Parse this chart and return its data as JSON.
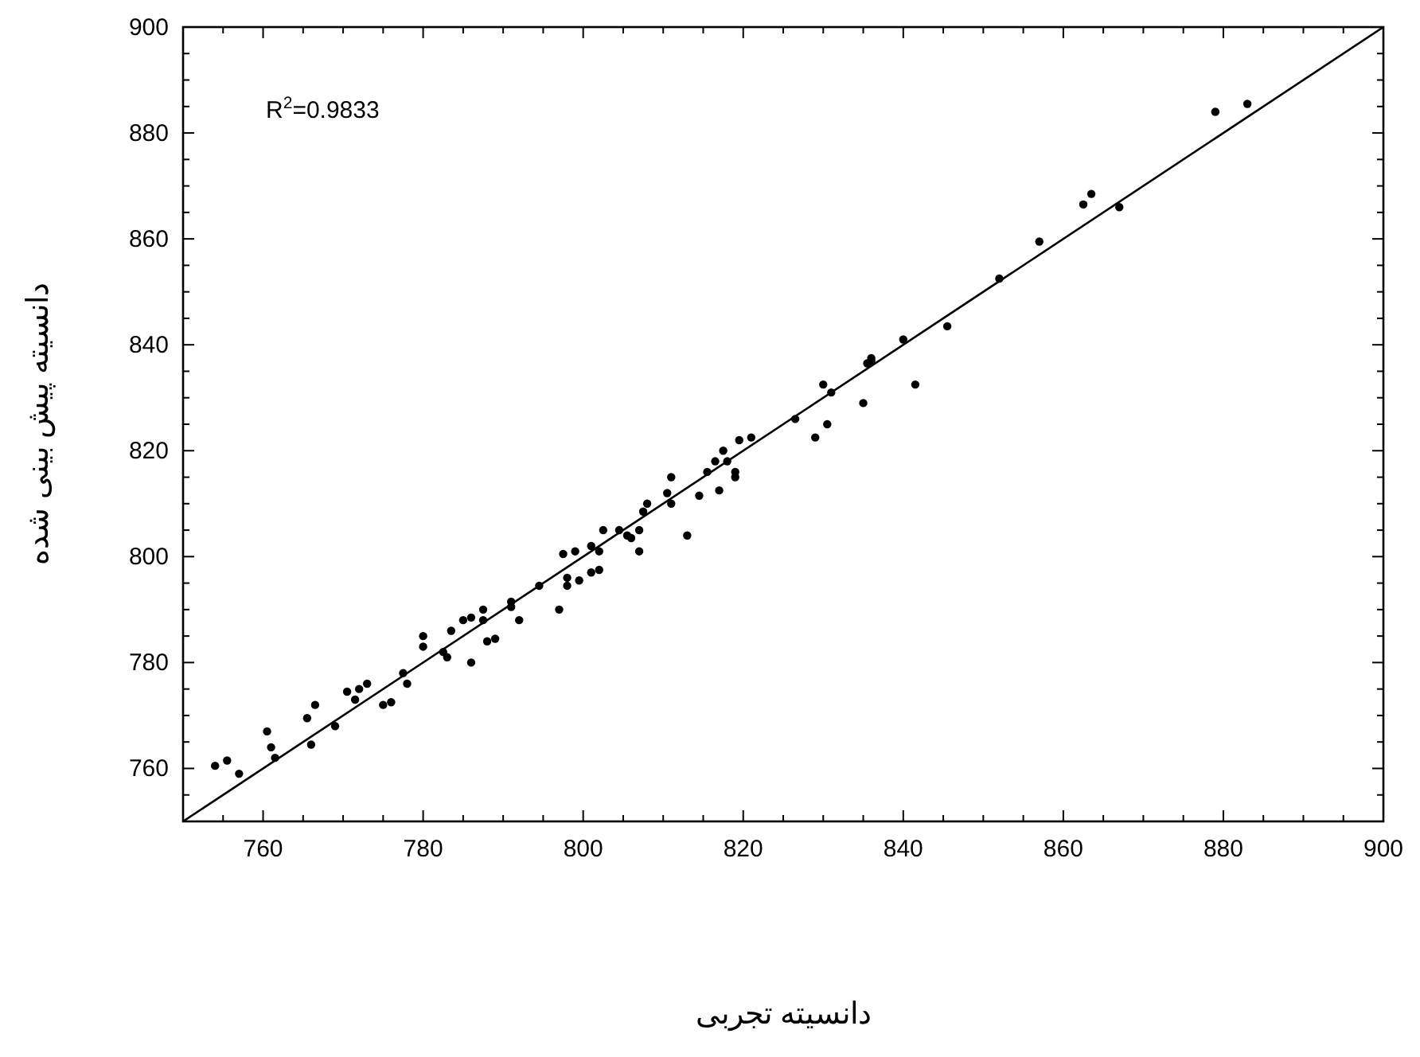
{
  "chart_data": {
    "type": "scatter",
    "xlabel": "دانسیته تجربی",
    "ylabel": "دانسیته پیش بینی شده",
    "annotations": [
      "R$^{2}$=0.9833"
    ],
    "xlim": [
      750,
      900
    ],
    "ylim": [
      750,
      900
    ],
    "xticks": [
      {
        "value": 755,
        "label": null
      },
      760,
      {
        "value": 765,
        "label": null
      },
      {
        "value": 770,
        "label": null
      },
      {
        "value": 775,
        "label": null
      },
      780,
      {
        "value": 785,
        "label": null
      },
      {
        "value": 790,
        "label": null
      },
      {
        "value": 795,
        "label": null
      },
      800,
      {
        "value": 805,
        "label": null
      },
      {
        "value": 810,
        "label": null
      },
      {
        "value": 815,
        "label": null
      },
      820,
      {
        "value": 825,
        "label": null
      },
      {
        "value": 830,
        "label": null
      },
      {
        "value": 835,
        "label": null
      },
      840,
      {
        "value": 845,
        "label": null
      },
      {
        "value": 850,
        "label": null
      },
      {
        "value": 855,
        "label": null
      },
      860,
      {
        "value": 865,
        "label": null
      },
      {
        "value": 870,
        "label": null
      },
      {
        "value": 875,
        "label": null
      },
      880,
      {
        "value": 885,
        "label": null
      },
      {
        "value": 890,
        "label": null
      },
      {
        "value": 895,
        "label": null
      },
      900
    ],
    "yticks": [
      {
        "value": 755,
        "label": null
      },
      760,
      {
        "value": 765,
        "label": null
      },
      {
        "value": 770,
        "label": null
      },
      {
        "value": 775,
        "label": null
      },
      780,
      {
        "value": 785,
        "label": null
      },
      {
        "value": 790,
        "label": null
      },
      {
        "value": 795,
        "label": null
      },
      800,
      {
        "value": 805,
        "label": null
      },
      {
        "value": 810,
        "label": null
      },
      {
        "value": 815,
        "label": null
      },
      820,
      {
        "value": 825,
        "label": null
      },
      {
        "value": 830,
        "label": null
      },
      {
        "value": 835,
        "label": null
      },
      840,
      {
        "value": 845,
        "label": null
      },
      {
        "value": 850,
        "label": null
      },
      {
        "value": 855,
        "label": null
      },
      860,
      {
        "value": 865,
        "label": null
      },
      {
        "value": 870,
        "label": null
      },
      {
        "value": 875,
        "label": null
      },
      880,
      {
        "value": 885,
        "label": null
      },
      {
        "value": 890,
        "label": null
      },
      {
        "value": 895,
        "label": null
      },
      900
    ],
    "marker": "circle",
    "series": [
      {
        "color": "#000000",
        "x": [
          754,
          755.5,
          757,
          760.5,
          761,
          761.5,
          765.5,
          766,
          766.5,
          769,
          770.5,
          771.5,
          772,
          773,
          775,
          776,
          777.5,
          778,
          780,
          780,
          782.5,
          783,
          783.5,
          785,
          786,
          786,
          787.5,
          787.5,
          788,
          789,
          791,
          791,
          792,
          794.5,
          797,
          797.5,
          798,
          798,
          799,
          799.5,
          801,
          801,
          802,
          802,
          802.5,
          804.5,
          805.5,
          806,
          807,
          807,
          807.5,
          808,
          810.5,
          811,
          811,
          813,
          814.5,
          815.5,
          816.5,
          817,
          817.5,
          818,
          819,
          819,
          819.5,
          821,
          826.5,
          829,
          830,
          830.5,
          831,
          835,
          835.5,
          836,
          836,
          840,
          841.5,
          845.5,
          852,
          857,
          862.5,
          863.5,
          867,
          879,
          883
        ],
        "values": [
          760.5,
          761.5,
          759,
          767,
          764,
          762,
          769.5,
          764.5,
          772,
          768,
          774.5,
          773,
          775,
          776,
          772,
          772.5,
          778,
          776,
          785,
          783,
          782,
          781,
          786,
          788,
          780,
          788.5,
          788,
          790,
          784,
          784.5,
          791.5,
          790.5,
          788,
          794.5,
          790,
          800.5,
          794.5,
          796,
          801,
          795.5,
          797,
          802,
          801,
          797.5,
          805,
          805,
          804,
          803.5,
          805,
          801,
          808.5,
          810,
          812,
          815,
          810,
          804,
          811.5,
          816,
          818,
          812.5,
          820,
          818,
          816,
          815,
          822,
          822.5,
          826,
          822.5,
          832.5,
          825,
          831,
          829,
          836.5,
          837,
          837.5,
          841,
          832.5,
          843.5,
          852.5,
          859.5,
          866.5,
          868.5,
          866,
          884,
          885.5
        ]
      },
      {
        "type": "line",
        "marker": "none",
        "color": "#000000",
        "x": [
          750,
          900
        ],
        "values": [
          750,
          900
        ]
      }
    ]
  }
}
